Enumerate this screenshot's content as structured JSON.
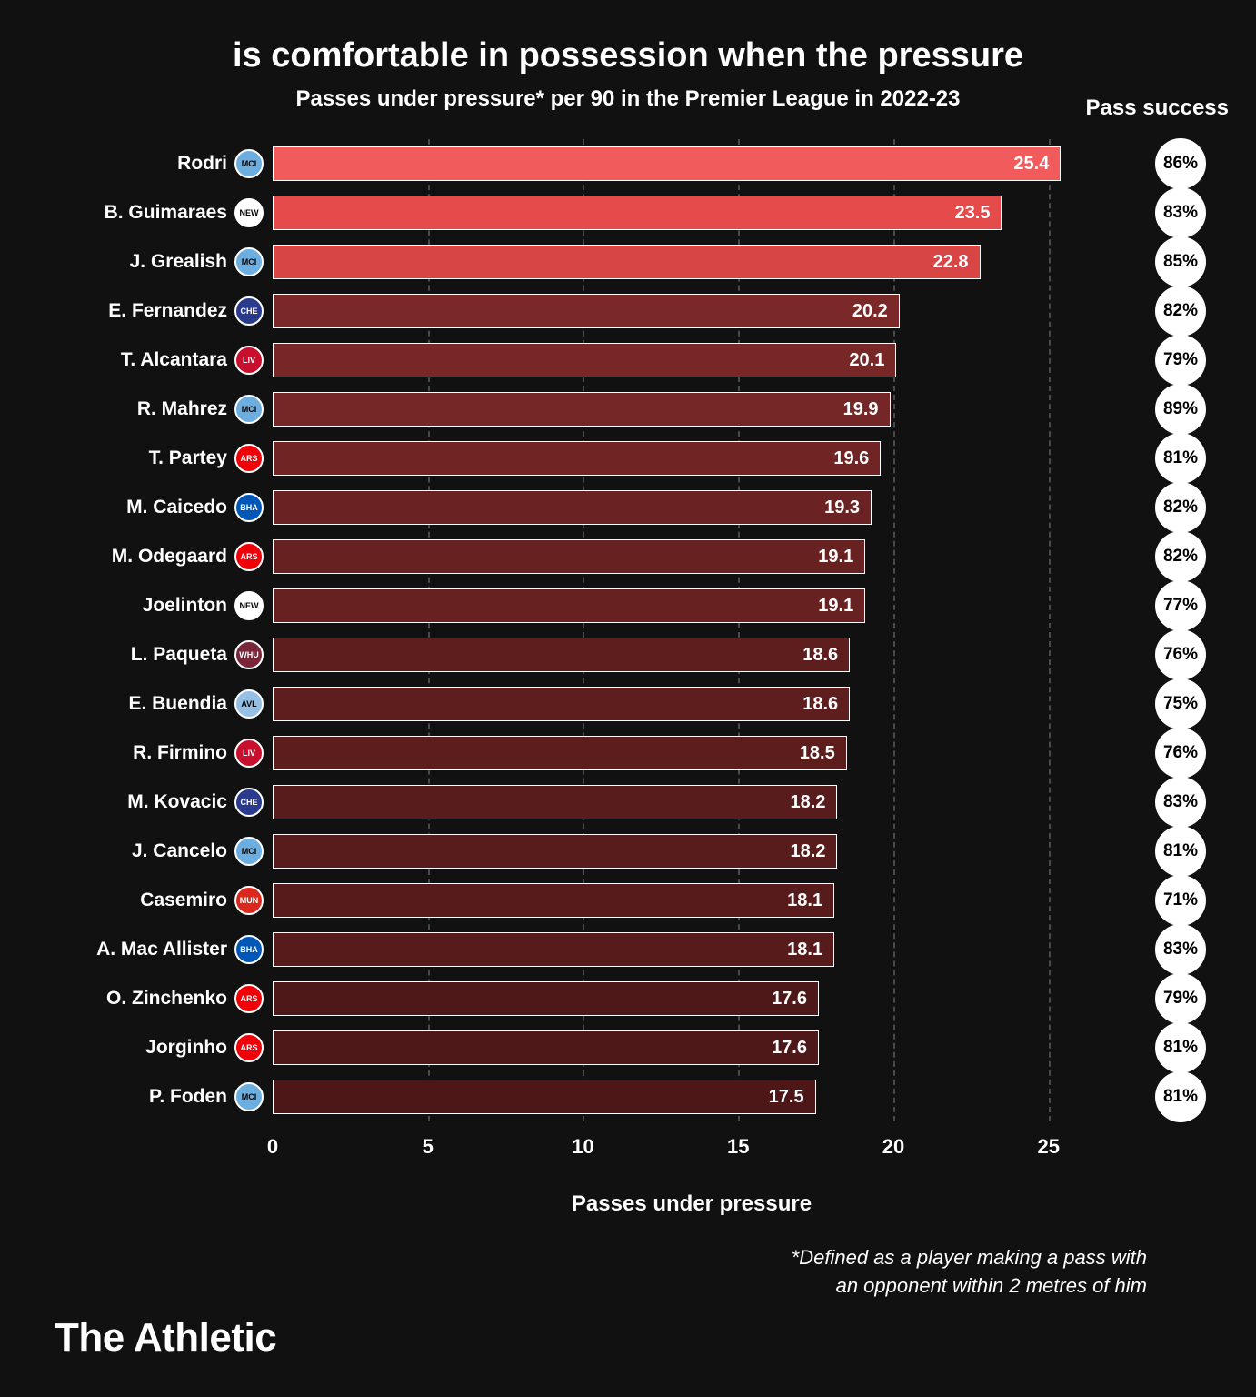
{
  "title": "is comfortable in possession when the pressure",
  "subtitle": "Passes under pressure* per 90 in the Premier League in 2022-23",
  "pass_success_header": "Pass success",
  "x_label": "Passes under pressure",
  "x_max": 27,
  "x_ticks": [
    0,
    5,
    10,
    15,
    20,
    25
  ],
  "footnote_line1": "*Defined as a player making a pass with",
  "footnote_line2": "an opponent within 2 metres of him",
  "brand": "The Athletic",
  "bar_border": "#ffffff",
  "grid_color": "#4a4a4a",
  "badge_bg": "#ffffff",
  "badge_fg": "#000000",
  "rows": [
    {
      "player": "Rodri",
      "crest": "MCI",
      "crest_bg": "#6caee0",
      "value": 25.4,
      "success": "86%",
      "bar_color": "#f15b5b"
    },
    {
      "player": "B. Guimaraes",
      "crest": "NEW",
      "crest_bg": "#ffffff",
      "value": 23.5,
      "success": "83%",
      "bar_color": "#e54b4b"
    },
    {
      "player": "J. Grealish",
      "crest": "MCI",
      "crest_bg": "#6caee0",
      "value": 22.8,
      "success": "85%",
      "bar_color": "#d84545"
    },
    {
      "player": "E. Fernandez",
      "crest": "CHE",
      "crest_bg": "#2a3a8c",
      "value": 20.2,
      "success": "82%",
      "bar_color": "#7a2828"
    },
    {
      "player": "T. Alcantara",
      "crest": "LIV",
      "crest_bg": "#c8102e",
      "value": 20.1,
      "success": "79%",
      "bar_color": "#782727"
    },
    {
      "player": "R. Mahrez",
      "crest": "MCI",
      "crest_bg": "#6caee0",
      "value": 19.9,
      "success": "89%",
      "bar_color": "#752626"
    },
    {
      "player": "T. Partey",
      "crest": "ARS",
      "crest_bg": "#ef0107",
      "value": 19.6,
      "success": "81%",
      "bar_color": "#702424"
    },
    {
      "player": "M. Caicedo",
      "crest": "BHA",
      "crest_bg": "#0057b8",
      "value": 19.3,
      "success": "82%",
      "bar_color": "#6b2222"
    },
    {
      "player": "M. Odegaard",
      "crest": "ARS",
      "crest_bg": "#ef0107",
      "value": 19.1,
      "success": "82%",
      "bar_color": "#682121"
    },
    {
      "player": "Joelinton",
      "crest": "NEW",
      "crest_bg": "#ffffff",
      "value": 19.1,
      "success": "77%",
      "bar_color": "#682121"
    },
    {
      "player": "L. Paqueta",
      "crest": "WHU",
      "crest_bg": "#7a263a",
      "value": 18.6,
      "success": "76%",
      "bar_color": "#5f1e1e"
    },
    {
      "player": "E. Buendia",
      "crest": "AVL",
      "crest_bg": "#95bfe5",
      "value": 18.6,
      "success": "75%",
      "bar_color": "#5f1e1e"
    },
    {
      "player": "R. Firmino",
      "crest": "LIV",
      "crest_bg": "#c8102e",
      "value": 18.5,
      "success": "76%",
      "bar_color": "#5d1d1d"
    },
    {
      "player": "M. Kovacic",
      "crest": "CHE",
      "crest_bg": "#2a3a8c",
      "value": 18.2,
      "success": "83%",
      "bar_color": "#591c1c"
    },
    {
      "player": "J. Cancelo",
      "crest": "MCI",
      "crest_bg": "#6caee0",
      "value": 18.2,
      "success": "81%",
      "bar_color": "#591c1c"
    },
    {
      "player": "Casemiro",
      "crest": "MUN",
      "crest_bg": "#da291c",
      "value": 18.1,
      "success": "71%",
      "bar_color": "#571b1b"
    },
    {
      "player": "A. Mac Allister",
      "crest": "BHA",
      "crest_bg": "#0057b8",
      "value": 18.1,
      "success": "83%",
      "bar_color": "#571b1b"
    },
    {
      "player": "O. Zinchenko",
      "crest": "ARS",
      "crest_bg": "#ef0107",
      "value": 17.6,
      "success": "79%",
      "bar_color": "#4f1818"
    },
    {
      "player": "Jorginho",
      "crest": "ARS",
      "crest_bg": "#ef0107",
      "value": 17.6,
      "success": "81%",
      "bar_color": "#4f1818"
    },
    {
      "player": "P. Foden",
      "crest": "MCI",
      "crest_bg": "#6caee0",
      "value": 17.5,
      "success": "81%",
      "bar_color": "#4d1717"
    }
  ]
}
